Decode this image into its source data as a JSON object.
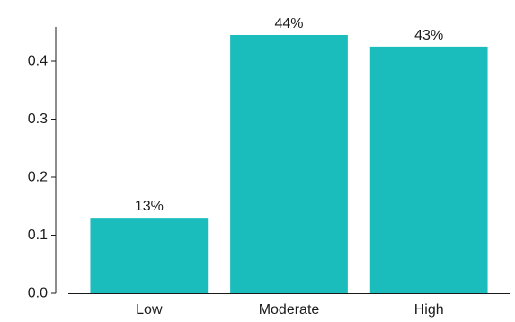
{
  "chart_data": {
    "type": "bar",
    "categories": [
      "Low",
      "Moderate",
      "High"
    ],
    "values": [
      0.13,
      0.445,
      0.425
    ],
    "data_labels": [
      "13%",
      "44%",
      "43%"
    ],
    "title": "",
    "xlabel": "",
    "ylabel": "",
    "ylim": [
      0,
      0.5
    ],
    "yticks": [
      0.0,
      0.1,
      0.2,
      0.3,
      0.4
    ],
    "ytick_labels": [
      "0.0",
      "0.1",
      "0.2",
      "0.3",
      "0.4"
    ],
    "bar_color": "#1bbcbc",
    "grid": false,
    "legend": "none"
  }
}
